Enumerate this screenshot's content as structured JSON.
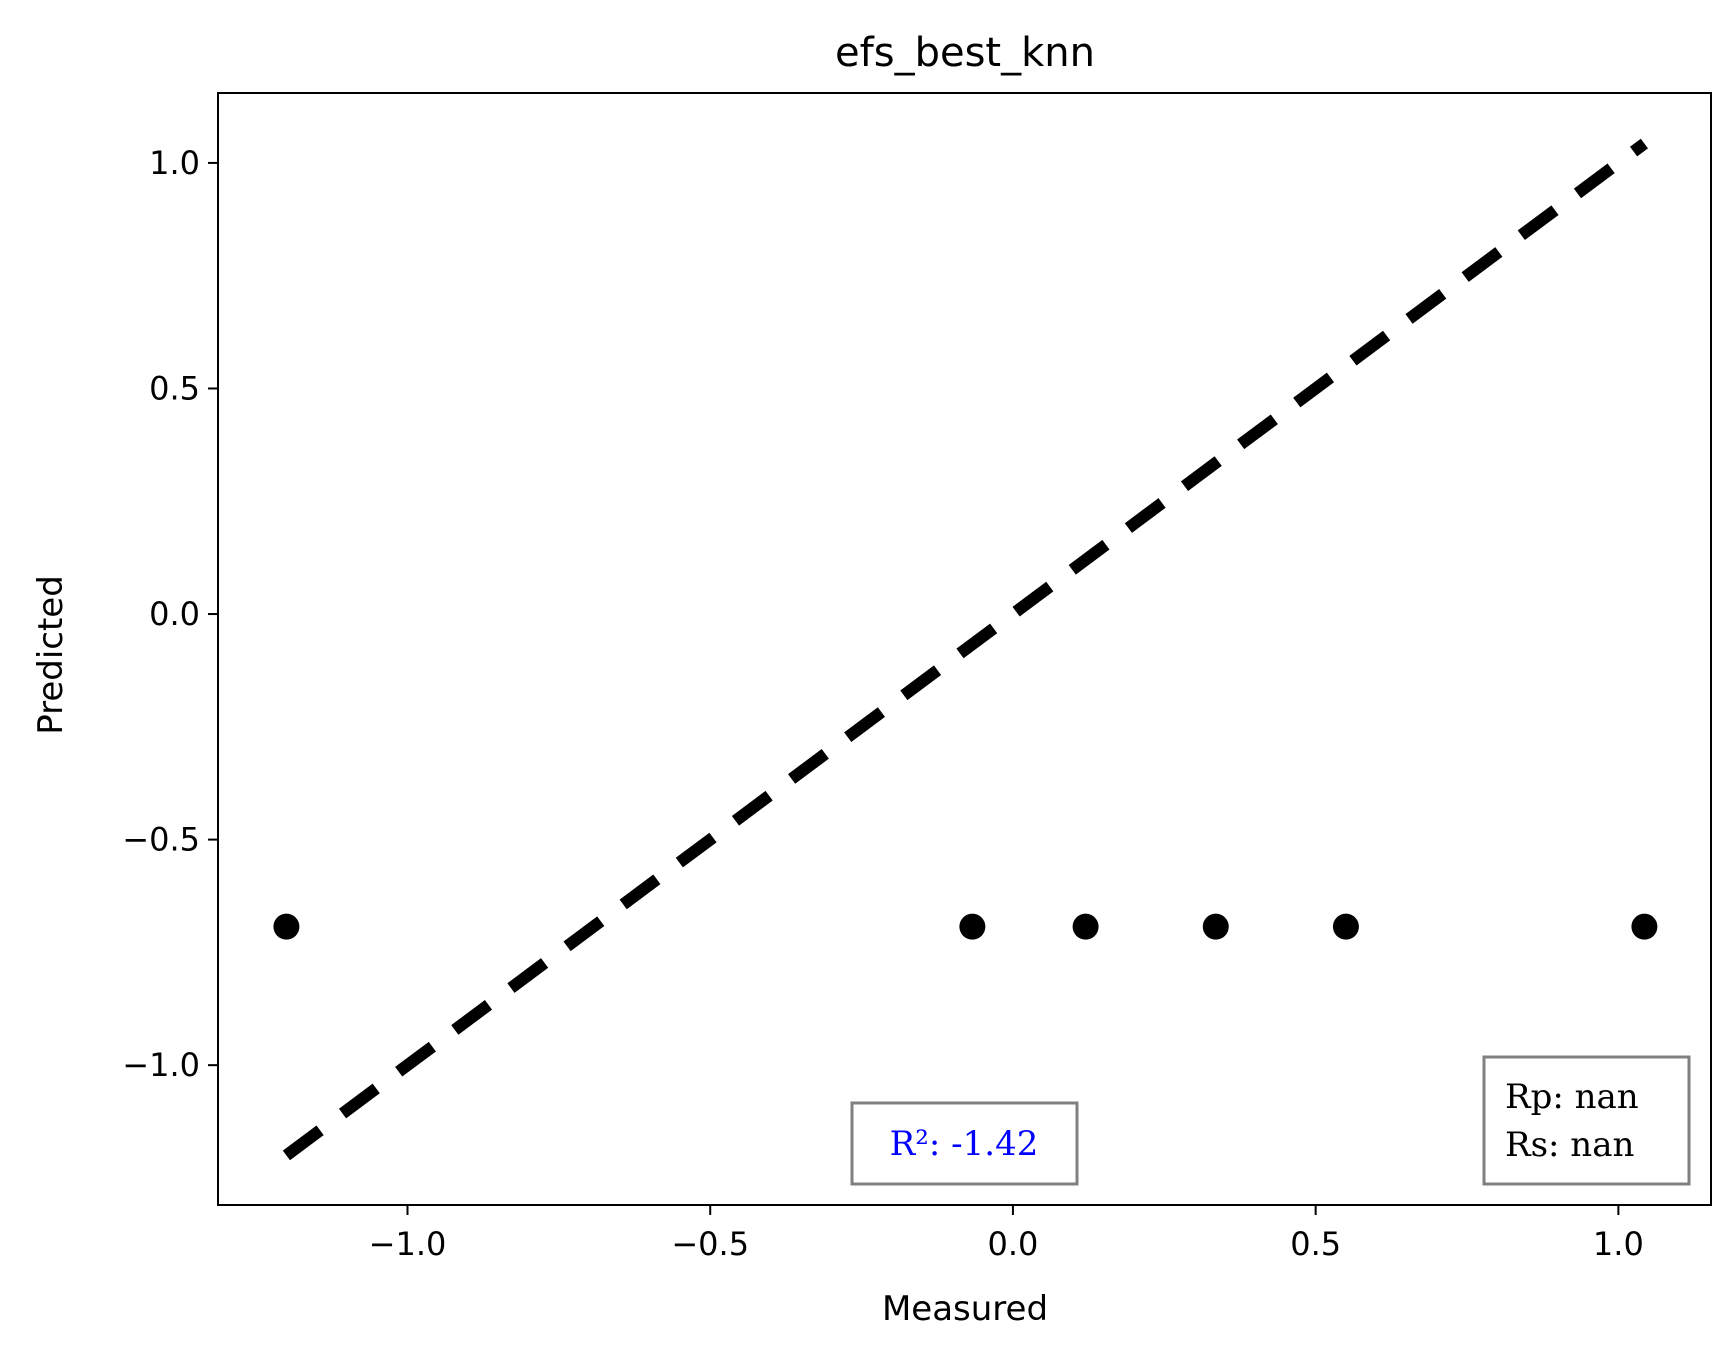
{
  "chart_data": {
    "type": "scatter",
    "title": "efs_best_knn",
    "xlabel": "Measured",
    "ylabel": "Predicted",
    "xlim": [
      -1.313,
      1.153
    ],
    "ylim": [
      -1.31,
      1.155
    ],
    "xticks": [
      -1.0,
      -0.5,
      0.0,
      0.5,
      1.0
    ],
    "yticks": [
      -1.0,
      -0.5,
      0.0,
      0.5,
      1.0
    ],
    "xtick_labels": [
      "−1.0",
      "−0.5",
      "0.0",
      "0.5",
      "1.0"
    ],
    "ytick_labels": [
      "−1.0",
      "−0.5",
      "0.0",
      "0.5",
      "1.0"
    ],
    "grid": false,
    "points": {
      "x": [
        -1.2,
        -0.067,
        0.12,
        0.335,
        0.55,
        1.043
      ],
      "y": [
        -0.693,
        -0.693,
        -0.693,
        -0.693,
        -0.693,
        -0.693
      ],
      "color": "#000000"
    },
    "identity_line": {
      "x": [
        -1.2,
        1.043
      ],
      "y": [
        -1.2,
        1.043
      ],
      "style": "dashed",
      "color": "#000000"
    },
    "annotations": {
      "r2": {
        "text": "R²: -1.42",
        "color": "#0000ff",
        "placement": "bottom-center"
      },
      "rp": {
        "text": "Rp: nan",
        "color": "#000000",
        "placement": "bottom-right"
      },
      "rs": {
        "text": "Rs: nan",
        "color": "#000000",
        "placement": "bottom-right"
      }
    }
  }
}
